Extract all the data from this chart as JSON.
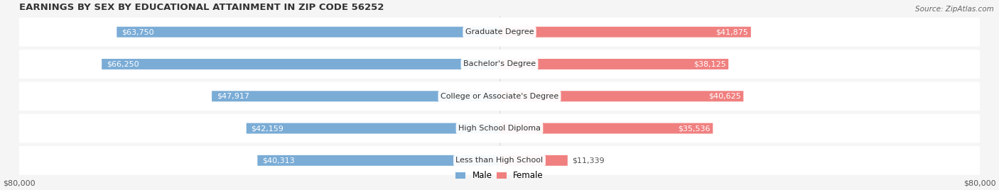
{
  "title": "EARNINGS BY SEX BY EDUCATIONAL ATTAINMENT IN ZIP CODE 56252",
  "source": "Source: ZipAtlas.com",
  "categories": [
    "Less than High School",
    "High School Diploma",
    "College or Associate's Degree",
    "Bachelor's Degree",
    "Graduate Degree"
  ],
  "male_values": [
    40313,
    42159,
    47917,
    66250,
    63750
  ],
  "female_values": [
    11339,
    35536,
    40625,
    38125,
    41875
  ],
  "male_color": "#7aacd6",
  "female_color": "#f08080",
  "male_label_color": "#555555",
  "female_label_color": "#555555",
  "male_inside_label_color": "#ffffff",
  "female_inside_label_color": "#ffffff",
  "background_color": "#f0f0f0",
  "row_bg_color": "#e8e8e8",
  "max_value": 80000,
  "x_tick_label": "$80,000",
  "title_fontsize": 9.5,
  "label_fontsize": 8.0,
  "tick_fontsize": 8.0,
  "legend_fontsize": 8.5,
  "source_fontsize": 7.5
}
